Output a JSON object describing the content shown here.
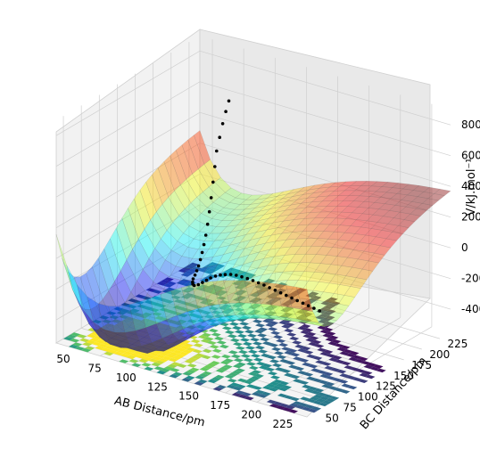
{
  "figure": {
    "x_axis_label": "AB Distance/pm",
    "y_axis_label": "BC Distance/pm",
    "z_axis_label": "V/kJ.mol⁻¹"
  },
  "chart_data": {
    "type": "surface3d",
    "title": "",
    "xlabel": "AB Distance/pm",
    "ylabel": "BC Distance/pm",
    "zlabel": "V/kJ.mol⁻¹",
    "x_ticks": [
      50,
      75,
      100,
      125,
      150,
      175,
      200,
      225
    ],
    "y_ticks": [
      50,
      75,
      100,
      125,
      150,
      175,
      200,
      225
    ],
    "z_ticks": [
      -400,
      -200,
      0,
      200,
      400,
      600,
      800
    ],
    "xlim": [
      40,
      240
    ],
    "ylim": [
      40,
      240
    ],
    "zlim": [
      -550,
      900
    ],
    "grid": true,
    "colors": {
      "surface_colormap": "jet",
      "contour_colormap": "viridis",
      "trajectory": "#000000"
    },
    "trajectory_points": [
      {
        "ab": 230,
        "bc": 75,
        "v": 20
      },
      {
        "ab": 225,
        "bc": 76,
        "v": 22
      },
      {
        "ab": 220,
        "bc": 77,
        "v": 24
      },
      {
        "ab": 215,
        "bc": 78,
        "v": 26
      },
      {
        "ab": 210,
        "bc": 79,
        "v": 28
      },
      {
        "ab": 205,
        "bc": 80,
        "v": 30
      },
      {
        "ab": 200,
        "bc": 81,
        "v": 32
      },
      {
        "ab": 195,
        "bc": 82,
        "v": 34
      },
      {
        "ab": 190,
        "bc": 83,
        "v": 36
      },
      {
        "ab": 185,
        "bc": 84,
        "v": 38
      },
      {
        "ab": 180,
        "bc": 85,
        "v": 40
      },
      {
        "ab": 175,
        "bc": 86,
        "v": 40
      },
      {
        "ab": 170,
        "bc": 87,
        "v": 40
      },
      {
        "ab": 165,
        "bc": 88,
        "v": 38
      },
      {
        "ab": 160,
        "bc": 89,
        "v": 35
      },
      {
        "ab": 155,
        "bc": 90,
        "v": 30
      },
      {
        "ab": 150,
        "bc": 91,
        "v": 20
      },
      {
        "ab": 145,
        "bc": 92,
        "v": 5
      },
      {
        "ab": 140,
        "bc": 94,
        "v": -15
      },
      {
        "ab": 135,
        "bc": 96,
        "v": -40
      },
      {
        "ab": 130,
        "bc": 98,
        "v": -70
      },
      {
        "ab": 125,
        "bc": 101,
        "v": -105
      },
      {
        "ab": 120,
        "bc": 104,
        "v": -140
      },
      {
        "ab": 115,
        "bc": 107,
        "v": -175
      },
      {
        "ab": 110,
        "bc": 110,
        "v": -200
      },
      {
        "ab": 106,
        "bc": 115,
        "v": -215
      },
      {
        "ab": 103,
        "bc": 120,
        "v": -222
      },
      {
        "ab": 100,
        "bc": 126,
        "v": -225
      },
      {
        "ab": 98,
        "bc": 132,
        "v": -222
      },
      {
        "ab": 96,
        "bc": 138,
        "v": -215
      },
      {
        "ab": 94,
        "bc": 144,
        "v": -205
      },
      {
        "ab": 92,
        "bc": 150,
        "v": -185
      },
      {
        "ab": 90,
        "bc": 156,
        "v": -160
      },
      {
        "ab": 88,
        "bc": 162,
        "v": -130
      },
      {
        "ab": 86,
        "bc": 168,
        "v": -90
      },
      {
        "ab": 84,
        "bc": 174,
        "v": -40
      },
      {
        "ab": 82,
        "bc": 180,
        "v": 20
      },
      {
        "ab": 80,
        "bc": 186,
        "v": 90
      },
      {
        "ab": 78,
        "bc": 192,
        "v": 170
      },
      {
        "ab": 76,
        "bc": 198,
        "v": 250
      },
      {
        "ab": 74,
        "bc": 204,
        "v": 330
      },
      {
        "ab": 73,
        "bc": 210,
        "v": 400
      },
      {
        "ab": 72,
        "bc": 216,
        "v": 470
      },
      {
        "ab": 71,
        "bc": 222,
        "v": 530
      },
      {
        "ab": 70,
        "bc": 228,
        "v": 580
      }
    ]
  }
}
